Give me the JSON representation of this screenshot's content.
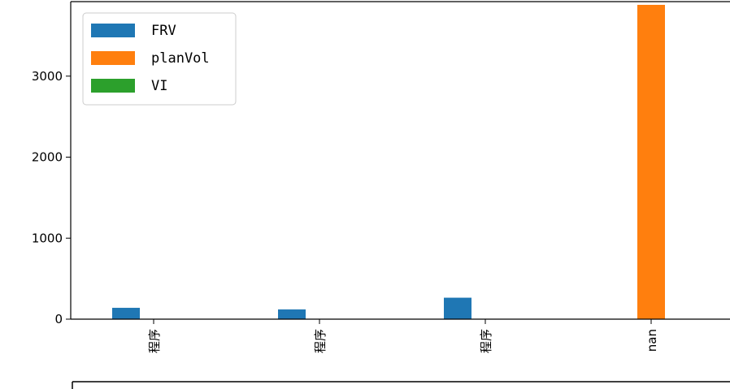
{
  "chart_data": {
    "type": "bar",
    "categories": [
      "程序",
      "程序",
      "程序",
      "nan"
    ],
    "series": [
      {
        "name": "FRV",
        "values": [
          140,
          120,
          265,
          0
        ],
        "color": "#1f77b4"
      },
      {
        "name": "planVol",
        "values": [
          0,
          0,
          0,
          3880
        ],
        "color": "#ff7f0e"
      },
      {
        "name": "VI",
        "values": [
          0,
          0,
          0,
          0
        ],
        "color": "#2ca02c"
      }
    ],
    "yticks": [
      0,
      1000,
      2000,
      3000,
      4000
    ],
    "ylim": [
      0,
      4000
    ],
    "grid": false,
    "legend": {
      "placement": "top-left"
    },
    "title": "",
    "xlabel": "",
    "ylabel": ""
  }
}
